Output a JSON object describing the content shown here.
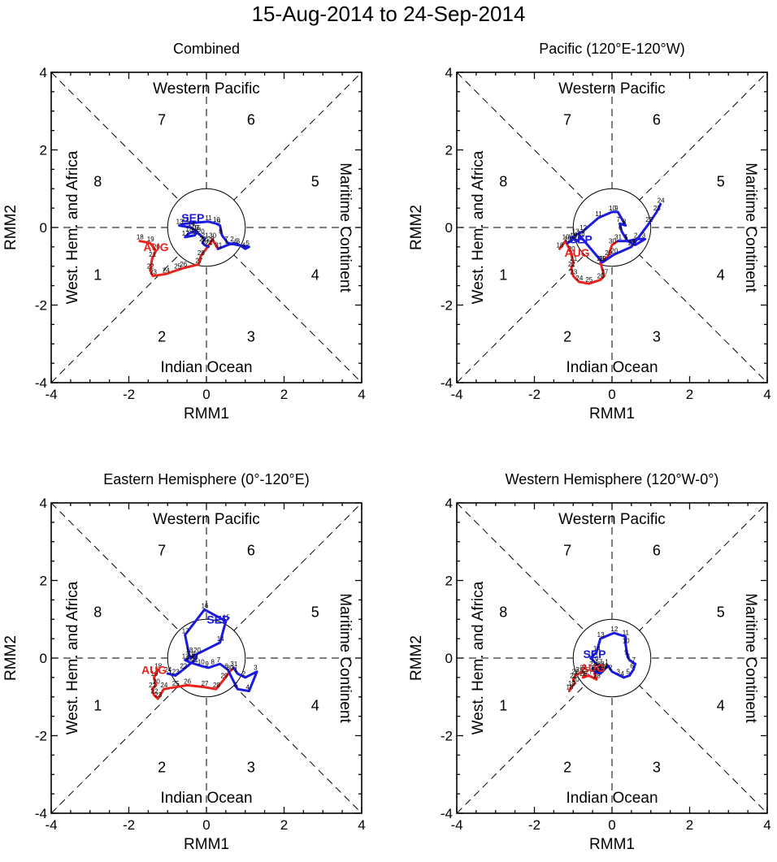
{
  "figure": {
    "title": "15-Aug-2014 to 24-Sep-2014"
  },
  "labels": {
    "xlabel": "RMM1",
    "ylabel": "RMM2",
    "top": "Western Pacific",
    "bottom": "Indian Ocean",
    "left": "West. Hem. and Africa",
    "right": "Maritime Continent",
    "phases": [
      "1",
      "2",
      "3",
      "4",
      "5",
      "6",
      "7",
      "8"
    ],
    "ticks": [
      "-4",
      "-2",
      "0",
      "2",
      "4"
    ]
  },
  "colors": {
    "aug": "#e8231e",
    "sep": "#1a1ae0",
    "frame": "#000000"
  },
  "chart_data": [
    {
      "type": "line",
      "title": "Combined",
      "xlabel": "RMM1",
      "ylabel": "RMM2",
      "xlim": [
        -4,
        4
      ],
      "ylim": [
        -4,
        4
      ],
      "series": [
        {
          "name": "AUG",
          "days": [
            "18",
            "19",
            "20",
            "21",
            "22",
            "23",
            "24",
            "25",
            "26",
            "27",
            "28",
            "29",
            "30",
            "31"
          ],
          "x": [
            -1.72,
            -1.45,
            -1.3,
            -1.4,
            -1.45,
            -1.38,
            -1.05,
            -0.75,
            -0.6,
            -0.2,
            -0.15,
            0.1,
            0.15,
            0.3
          ],
          "y": [
            -0.35,
            -0.4,
            -0.6,
            -0.8,
            -1.1,
            -1.25,
            -1.2,
            -1.1,
            -1.05,
            -0.95,
            -0.75,
            -0.4,
            -0.3,
            -0.55
          ]
        },
        {
          "name": "SEP",
          "days": [
            "1",
            "2",
            "3",
            "4",
            "5",
            "6",
            "7",
            "8",
            "9",
            "10",
            "11",
            "12",
            "13",
            "14",
            "15",
            "16",
            "17",
            "18",
            "19",
            "20",
            "21",
            "22",
            "23",
            "24"
          ],
          "x": [
            0.55,
            0.7,
            0.85,
            1.0,
            1.1,
            0.8,
            0.55,
            0.4,
            0.35,
            0.25,
            0.05,
            -0.55,
            -0.7,
            -0.4,
            -0.25,
            -0.3,
            -0.55,
            -0.45,
            -0.3,
            -0.15,
            -0.05,
            -0.1,
            -0.05,
            0.05
          ],
          "y": [
            -0.45,
            -0.4,
            -0.45,
            -0.55,
            -0.5,
            -0.45,
            -0.4,
            -0.2,
            0.05,
            0.1,
            0.15,
            0.1,
            0.05,
            0.0,
            -0.1,
            -0.2,
            -0.25,
            -0.15,
            -0.1,
            -0.2,
            -0.3,
            -0.4,
            -0.45,
            -0.5
          ]
        }
      ],
      "annotations": [
        {
          "text": "AUG",
          "x": -1.3,
          "y": -0.5
        },
        {
          "text": "SEP",
          "x": -0.35,
          "y": 0.25
        }
      ]
    },
    {
      "type": "line",
      "title": "Pacific (120°E-120°W)",
      "xlabel": "RMM1",
      "ylabel": "RMM2",
      "xlim": [
        -4,
        4
      ],
      "ylim": [
        -4,
        4
      ],
      "series": [
        {
          "name": "AUG",
          "days": [
            "18",
            "19",
            "20",
            "21",
            "22",
            "23",
            "24",
            "25",
            "26",
            "27",
            "28",
            "29",
            "30",
            "31"
          ],
          "x": [
            -1.35,
            -1.2,
            -1.05,
            -1.0,
            -1.05,
            -1.0,
            -0.85,
            -0.6,
            -0.3,
            -0.2,
            -0.3,
            -0.1,
            0.0,
            0.15
          ],
          "y": [
            -0.55,
            -0.35,
            -0.65,
            -0.9,
            -1.05,
            -1.25,
            -1.4,
            -1.45,
            -1.35,
            -1.25,
            -0.9,
            -0.75,
            -0.45,
            -0.35
          ]
        },
        {
          "name": "SEP",
          "days": [
            "1",
            "2",
            "3",
            "4",
            "5",
            "6",
            "7",
            "8",
            "9",
            "10",
            "11",
            "12",
            "13",
            "14",
            "15",
            "16",
            "17",
            "18",
            "19",
            "20",
            "21",
            "22",
            "23",
            "24"
          ],
          "x": [
            0.4,
            0.65,
            0.85,
            0.6,
            0.4,
            0.25,
            0.2,
            0.35,
            0.15,
            0.0,
            -0.35,
            -0.75,
            -0.95,
            -1.05,
            -1.15,
            -1.0,
            -0.9,
            -0.8,
            -0.25,
            0.05,
            0.5,
            0.95,
            1.15,
            1.25
          ],
          "y": [
            -0.35,
            -0.3,
            -0.3,
            -0.45,
            -0.35,
            -0.1,
            0.1,
            0.05,
            0.4,
            0.4,
            0.25,
            -0.1,
            -0.2,
            -0.35,
            -0.4,
            -0.3,
            -0.35,
            -0.25,
            -0.9,
            -0.7,
            -0.5,
            0.1,
            0.4,
            0.6
          ]
        }
      ],
      "annotations": [
        {
          "text": "AUG",
          "x": -0.9,
          "y": -0.65
        },
        {
          "text": "SEP",
          "x": -0.8,
          "y": -0.3
        }
      ]
    },
    {
      "type": "line",
      "title": "Eastern Hemisphere (0°-120°E)",
      "xlabel": "RMM1",
      "ylabel": "RMM2",
      "xlim": [
        -4,
        4
      ],
      "ylim": [
        -4,
        4
      ],
      "series": [
        {
          "name": "AUG",
          "days": [
            "18",
            "19",
            "20",
            "21",
            "22",
            "23",
            "24",
            "25",
            "26",
            "27",
            "28",
            "29",
            "30",
            "31"
          ],
          "x": [
            -1.25,
            -1.35,
            -1.3,
            -1.4,
            -1.35,
            -1.25,
            -1.1,
            -0.8,
            -0.5,
            -0.05,
            0.25,
            0.45,
            0.6,
            0.7
          ],
          "y": [
            -0.3,
            -0.5,
            -0.7,
            -0.8,
            -0.95,
            -1.05,
            -0.8,
            -0.75,
            -0.7,
            -0.75,
            -0.8,
            -0.55,
            -0.35,
            -0.25
          ]
        },
        {
          "name": "SEP",
          "days": [
            "1",
            "2",
            "3",
            "4",
            "5",
            "6",
            "7",
            "8",
            "9",
            "10",
            "11",
            "12",
            "13",
            "14",
            "15",
            "16",
            "17",
            "18",
            "19",
            "20",
            "21",
            "22",
            "23",
            "24"
          ],
          "x": [
            0.8,
            1.0,
            1.3,
            1.1,
            0.8,
            0.55,
            0.35,
            0.2,
            0.05,
            -0.15,
            -0.3,
            -0.45,
            -0.55,
            0.35,
            0.5,
            -0.05,
            -0.55,
            -0.45,
            -0.4,
            -0.25,
            -0.3,
            -0.6,
            -0.8,
            -1.0
          ],
          "y": [
            -0.4,
            -0.5,
            -0.35,
            -0.85,
            -0.8,
            -0.3,
            -0.15,
            -0.2,
            -0.25,
            -0.2,
            -0.15,
            -0.1,
            -0.05,
            0.4,
            0.95,
            1.25,
            0.6,
            0.1,
            0.0,
            0.1,
            -0.05,
            -0.3,
            -0.45,
            -0.4
          ]
        }
      ],
      "annotations": [
        {
          "text": "AUG",
          "x": -1.35,
          "y": -0.3
        },
        {
          "text": "SEP",
          "x": 0.3,
          "y": 1.0
        }
      ]
    },
    {
      "type": "line",
      "title": "Western Hemisphere (120°W-0°)",
      "xlabel": "RMM1",
      "ylabel": "RMM2",
      "xlim": [
        -4,
        4
      ],
      "ylim": [
        -4,
        4
      ],
      "series": [
        {
          "name": "AUG",
          "days": [
            "18",
            "19",
            "20",
            "21",
            "22",
            "23",
            "24",
            "25",
            "26",
            "27",
            "28",
            "29",
            "30",
            "31"
          ],
          "x": [
            -1.1,
            -1.05,
            -0.95,
            -1.0,
            -0.95,
            -0.85,
            -0.75,
            -0.7,
            -0.75,
            -0.6,
            -0.4,
            -0.45,
            -0.3,
            -0.2
          ],
          "y": [
            -0.85,
            -0.75,
            -0.65,
            -0.55,
            -0.45,
            -0.4,
            -0.35,
            -0.4,
            -0.5,
            -0.45,
            -0.55,
            -0.4,
            -0.3,
            -0.3
          ]
        },
        {
          "name": "SEP",
          "days": [
            "1",
            "2",
            "3",
            "4",
            "5",
            "6",
            "7",
            "8",
            "9",
            "10",
            "11",
            "12",
            "13",
            "14",
            "15",
            "16",
            "17",
            "18",
            "19",
            "20",
            "21",
            "22",
            "23",
            "24"
          ],
          "x": [
            -0.1,
            0.0,
            0.2,
            0.3,
            0.45,
            0.55,
            0.6,
            0.45,
            0.4,
            0.35,
            0.35,
            0.05,
            -0.3,
            -0.4,
            -0.55,
            -0.45,
            -0.35,
            -0.3,
            -0.25,
            -0.4,
            -0.5,
            -0.45,
            -0.3,
            -0.2
          ],
          "y": [
            -0.2,
            -0.35,
            -0.45,
            -0.5,
            -0.45,
            -0.3,
            -0.15,
            -0.05,
            0.05,
            0.35,
            0.55,
            0.65,
            0.5,
            0.15,
            0.0,
            -0.1,
            -0.2,
            -0.25,
            -0.35,
            -0.3,
            -0.25,
            -0.35,
            -0.4,
            -0.3
          ]
        }
      ],
      "annotations": [
        {
          "text": "AUG",
          "x": -0.5,
          "y": -0.25
        },
        {
          "text": "SEP",
          "x": -0.45,
          "y": 0.1
        }
      ]
    }
  ]
}
